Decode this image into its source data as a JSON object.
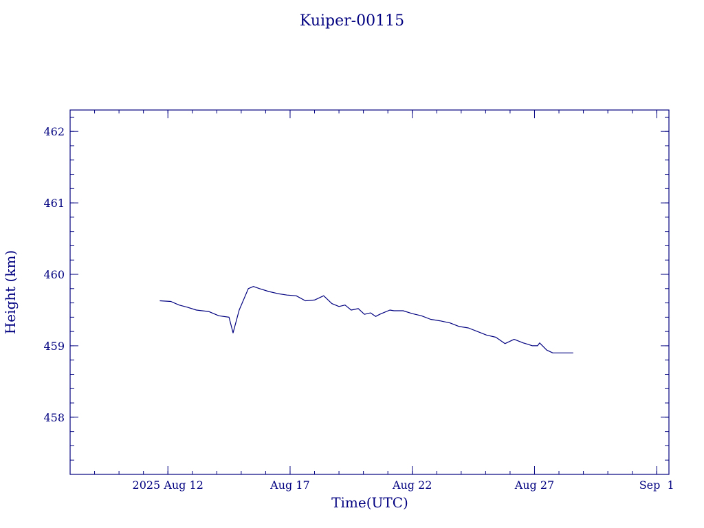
{
  "chart_data": {
    "type": "line",
    "title": "Kuiper-00115",
    "xlabel": "Time(UTC)",
    "ylabel": "Height (km)",
    "xlim": [
      "2025-08-08",
      "2025-09-01T12:00"
    ],
    "ylim": [
      457.2,
      462.3
    ],
    "x_ticks": [
      {
        "x": "2025-08-12",
        "label": "2025 Aug 12"
      },
      {
        "x": "2025-08-17",
        "label": "Aug 17"
      },
      {
        "x": "2025-08-22",
        "label": "Aug 22"
      },
      {
        "x": "2025-08-27",
        "label": "Aug 27"
      },
      {
        "x": "2025-09-01",
        "label": "Sep  1"
      }
    ],
    "y_ticks": [
      458,
      459,
      460,
      461,
      462
    ],
    "grid": false,
    "legend": "none",
    "color": "#000080",
    "series": [
      {
        "x": [
          "2025-08-11T16:00",
          "2025-08-12T03:00",
          "2025-08-12T11:00",
          "2025-08-12T19:00",
          "2025-08-13T04:00",
          "2025-08-13T16:00",
          "2025-08-14T02:00",
          "2025-08-14T12:00",
          "2025-08-14T16:00",
          "2025-08-14T22:00",
          "2025-08-15T07:00",
          "2025-08-15T12:00",
          "2025-08-15T18:00",
          "2025-08-16T03:00",
          "2025-08-16T12:00",
          "2025-08-16T21:00",
          "2025-08-17T06:00",
          "2025-08-17T15:00",
          "2025-08-18T00:00",
          "2025-08-18T09:00",
          "2025-08-18T17:00",
          "2025-08-19T00:00",
          "2025-08-19T06:00",
          "2025-08-19T12:00",
          "2025-08-19T19:00",
          "2025-08-20T01:00",
          "2025-08-20T07:00",
          "2025-08-20T12:00",
          "2025-08-20T16:00",
          "2025-08-20T21:00",
          "2025-08-21T02:00",
          "2025-08-21T06:00",
          "2025-08-21T15:00",
          "2025-08-22T00:00",
          "2025-08-22T09:00",
          "2025-08-22T18:00",
          "2025-08-23T03:00",
          "2025-08-23T13:00",
          "2025-08-23T22:00",
          "2025-08-24T07:00",
          "2025-08-24T16:00",
          "2025-08-25T01:00",
          "2025-08-25T10:00",
          "2025-08-25T19:00",
          "2025-08-26T04:00",
          "2025-08-26T13:00",
          "2025-08-26T22:00",
          "2025-08-27T03:00",
          "2025-08-27T05:00",
          "2025-08-27T12:00",
          "2025-08-27T18:00",
          "2025-08-28T00:00",
          "2025-08-28T04:00",
          "2025-08-28T08:00",
          "2025-08-28T14:00"
        ],
        "y": [
          459.63,
          459.62,
          459.57,
          459.54,
          459.5,
          459.48,
          459.42,
          459.4,
          459.18,
          459.5,
          459.8,
          459.83,
          459.8,
          459.76,
          459.73,
          459.71,
          459.7,
          459.63,
          459.64,
          459.7,
          459.59,
          459.55,
          459.57,
          459.5,
          459.52,
          459.44,
          459.46,
          459.41,
          459.44,
          459.47,
          459.5,
          459.49,
          459.49,
          459.45,
          459.42,
          459.37,
          459.35,
          459.32,
          459.27,
          459.25,
          459.2,
          459.15,
          459.12,
          459.03,
          459.09,
          459.04,
          459.0,
          459.0,
          459.04,
          458.94,
          458.9,
          458.9,
          458.9,
          458.9,
          458.9
        ]
      }
    ]
  }
}
